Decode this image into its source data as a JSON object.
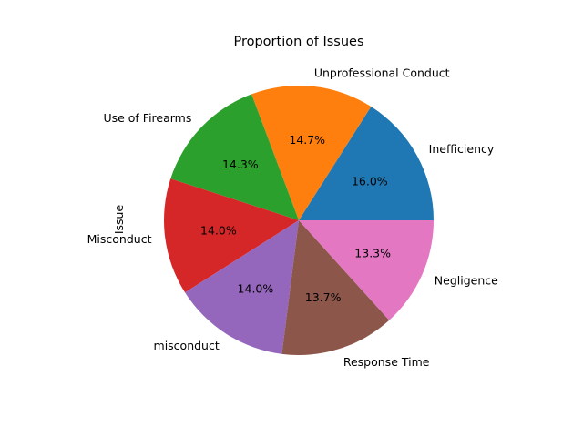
{
  "chart_data": {
    "type": "pie",
    "title": "Proportion of Issues",
    "ylabel": "Issue",
    "slices": [
      {
        "label": "Inefficiency",
        "value": 16.0,
        "pct_label": "16.0%",
        "color": "#1f77b4"
      },
      {
        "label": "Unprofessional Conduct",
        "value": 14.7,
        "pct_label": "14.7%",
        "color": "#ff7f0e"
      },
      {
        "label": "Use of Firearms",
        "value": 14.3,
        "pct_label": "14.3%",
        "color": "#2ca02c"
      },
      {
        "label": "Misconduct",
        "value": 14.0,
        "pct_label": "14.0%",
        "color": "#d62728"
      },
      {
        "label": "misconduct",
        "value": 14.0,
        "pct_label": "14.0%",
        "color": "#9467bd"
      },
      {
        "label": "Response Time",
        "value": 13.7,
        "pct_label": "13.7%",
        "color": "#8c564b"
      },
      {
        "label": "Negligence",
        "value": 13.3,
        "pct_label": "13.3%",
        "color": "#e377c2"
      }
    ],
    "start_angle_deg": 0,
    "direction": "counterclockwise"
  }
}
